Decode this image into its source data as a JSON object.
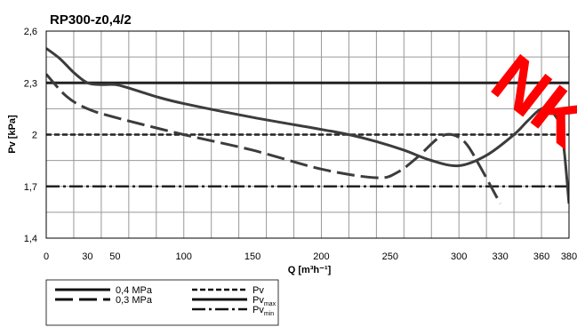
{
  "chart_data": {
    "type": "line",
    "title": "RP300-z0,4/2",
    "xlabel": "Q [m³h⁻¹]",
    "ylabel": "Pv [kPa]",
    "xlim": [
      0,
      380
    ],
    "ylim": [
      1.4,
      2.6
    ],
    "x_ticks": [
      "0",
      "30",
      "50",
      "100",
      "150",
      "200",
      "250",
      "300",
      "330",
      "360",
      "380"
    ],
    "y_ticks": [
      "1,4",
      "1,7",
      "2",
      "2,3",
      "2,6"
    ],
    "grid": true,
    "legend_position": "bottom-left",
    "series": [
      {
        "name": "0,4 MPa",
        "style": "solid",
        "points": [
          [
            0,
            2.5
          ],
          [
            10,
            2.44
          ],
          [
            20,
            2.36
          ],
          [
            30,
            2.3
          ],
          [
            40,
            2.29
          ],
          [
            50,
            2.29
          ],
          [
            60,
            2.27
          ],
          [
            80,
            2.22
          ],
          [
            100,
            2.18
          ],
          [
            150,
            2.1
          ],
          [
            200,
            2.03
          ],
          [
            220,
            2.0
          ],
          [
            240,
            1.96
          ],
          [
            260,
            1.91
          ],
          [
            280,
            1.85
          ],
          [
            300,
            1.82
          ],
          [
            320,
            1.88
          ],
          [
            340,
            2.0
          ],
          [
            350,
            2.08
          ],
          [
            360,
            2.15
          ],
          [
            368,
            2.13
          ],
          [
            375,
            2.0
          ],
          [
            380,
            1.6
          ]
        ]
      },
      {
        "name": "0,3 MPa",
        "style": "long-dash",
        "points": [
          [
            0,
            2.35
          ],
          [
            15,
            2.22
          ],
          [
            30,
            2.15
          ],
          [
            50,
            2.1
          ],
          [
            100,
            2.0
          ],
          [
            150,
            1.91
          ],
          [
            200,
            1.8
          ],
          [
            240,
            1.75
          ],
          [
            255,
            1.78
          ],
          [
            270,
            1.87
          ],
          [
            285,
            1.98
          ],
          [
            295,
            2.0
          ],
          [
            305,
            1.95
          ],
          [
            315,
            1.82
          ],
          [
            330,
            1.6
          ]
        ]
      },
      {
        "name": "Pv",
        "style": "short-dash",
        "y": 2.0
      },
      {
        "name": "Pvmax",
        "style": "solid",
        "y": 2.3
      },
      {
        "name": "Pvmin",
        "style": "dash-dot",
        "y": 1.7
      }
    ],
    "legend": {
      "col1": [
        {
          "label": "0,4 MPa",
          "style": "solid"
        },
        {
          "label": "0,3 MPa",
          "style": "long-dash"
        }
      ],
      "col2": [
        {
          "label": "Pv",
          "sub": "",
          "style": "short-dash"
        },
        {
          "label": "Pv",
          "sub": "max",
          "style": "solid"
        },
        {
          "label": "Pv",
          "sub": "min",
          "style": "dash-dot"
        }
      ]
    },
    "watermark": "NK"
  }
}
